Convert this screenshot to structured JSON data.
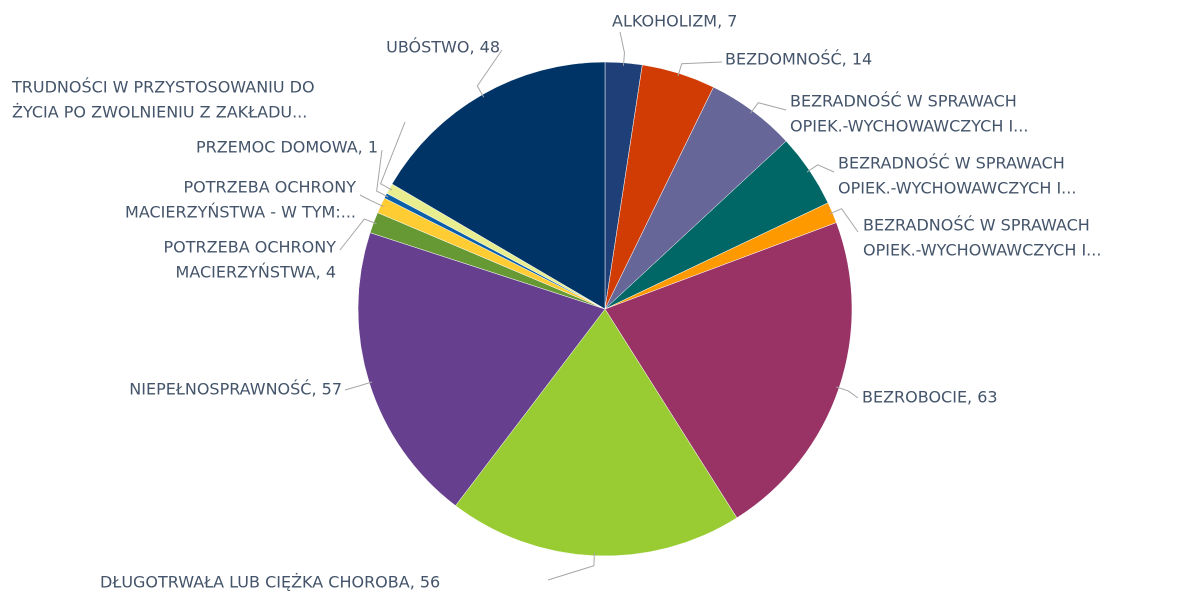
{
  "chart_data": {
    "type": "pie",
    "categories": [
      "ALKOHOLIZM",
      "BEZDOMNOŚĆ",
      "BEZRADNOŚĆ W SPRAWACH OPIEK.-WYCHOWAWCZYCH I...",
      "BEZRADNOŚĆ W SPRAWACH OPIEK.-WYCHOWAWCZYCH I...",
      "BEZRADNOŚĆ W SPRAWACH OPIEK.-WYCHOWAWCZYCH I...",
      "BEZROBOCIE",
      "DŁUGOTRWAŁA LUB CIĘŻKA CHOROBA",
      "NIEPEŁNOSPRAWNOŚĆ",
      "POTRZEBA OCHRONY MACIERZYŃSTWA",
      "POTRZEBA OCHRONY MACIERZYŃSTWA - W TYM:...",
      "PRZEMOC DOMOWA",
      "TRUDNOŚCI W PRZYSTOSOWANIU DO ŻYCIA PO ZWOLNIENIU Z ZAKŁADU...",
      "UBÓSTWO"
    ],
    "values": [
      7,
      14,
      17,
      14,
      4,
      63,
      56,
      57,
      4,
      3,
      1,
      2,
      48
    ],
    "labels": [
      [
        "ALKOHOLIZM, 7"
      ],
      [
        "BEZDOMNOŚĆ, 14"
      ],
      [
        "BEZRADNOŚĆ W SPRAWACH",
        "OPIEK.-WYCHOWAWCZYCH I..."
      ],
      [
        "BEZRADNOŚĆ W SPRAWACH",
        "OPIEK.-WYCHOWAWCZYCH I..."
      ],
      [
        "BEZRADNOŚĆ W SPRAWACH",
        "OPIEK.-WYCHOWAWCZYCH I..."
      ],
      [
        "BEZROBOCIE, 63"
      ],
      [
        "DŁUGOTRWAŁA LUB CIĘŻKA CHOROBA, 56"
      ],
      [
        "NIEPEŁNOSPRAWNOŚĆ, 57"
      ],
      [
        "POTRZEBA OCHRONY",
        "MACIERZYŃSTWA, 4"
      ],
      [
        "POTRZEBA OCHRONY",
        "MACIERZYŃSTWA - W TYM:..."
      ],
      [
        "PRZEMOC DOMOWA, 1"
      ],
      [
        "TRUDNOŚCI W PRZYSTOSOWANIU DO",
        "ŻYCIA PO ZWOLNIENIU Z ZAKŁADU..."
      ],
      [
        "UBÓSTWO, 48"
      ]
    ],
    "colors": [
      "#1f3f78",
      "#d13c05",
      "#666699",
      "#006666",
      "#ff9900",
      "#993366",
      "#99cc33",
      "#663f8f",
      "#669933",
      "#ffcc33",
      "#0a5fa8",
      "#e8ee8f",
      "#003366"
    ]
  }
}
